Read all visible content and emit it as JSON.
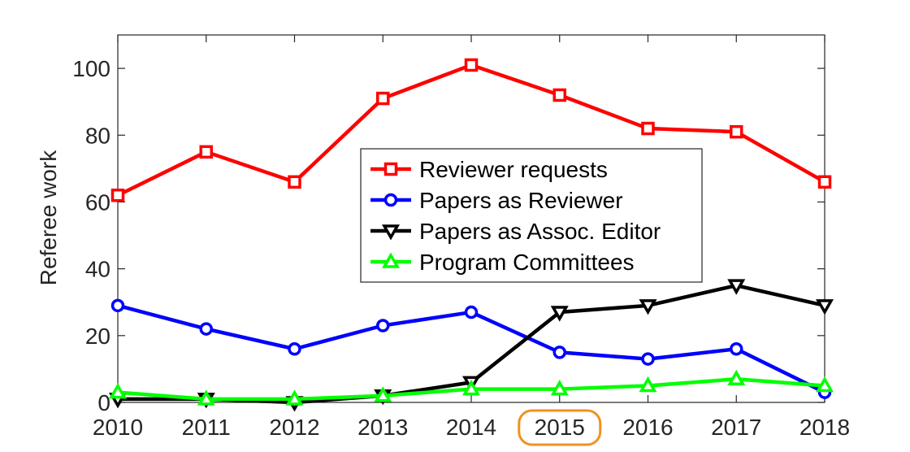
{
  "chart_data": {
    "type": "line",
    "title": "",
    "xlabel": "",
    "ylabel": "Referee work",
    "x": [
      2010,
      2011,
      2012,
      2013,
      2014,
      2015,
      2016,
      2017,
      2018
    ],
    "x_tick_labels": [
      "2010",
      "2011",
      "2012",
      "2013",
      "2014",
      "2015",
      "2016",
      "2017",
      "2018"
    ],
    "xlim": [
      2010,
      2018
    ],
    "ylim": [
      0,
      110
    ],
    "y_ticks": [
      0,
      20,
      40,
      60,
      80,
      100
    ],
    "y_tick_labels": [
      "0",
      "20",
      "40",
      "60",
      "80",
      "100"
    ],
    "grid": false,
    "legend_position": "center",
    "highlighted_x_label": "2015",
    "highlight_color": "#f0921e",
    "series": [
      {
        "name": "Reviewer requests",
        "color": "#ff0000",
        "marker": "square",
        "values": [
          62,
          75,
          66,
          91,
          101,
          92,
          82,
          81,
          66
        ]
      },
      {
        "name": "Papers as Reviewer",
        "color": "#0000ff",
        "marker": "circle",
        "values": [
          29,
          22,
          16,
          23,
          27,
          15,
          13,
          16,
          3
        ]
      },
      {
        "name": "Papers as Assoc. Editor",
        "color": "#000000",
        "marker": "triangle-down",
        "values": [
          1,
          1,
          0,
          2,
          6,
          27,
          29,
          35,
          29
        ]
      },
      {
        "name": "Program Committees",
        "color": "#00ff00",
        "marker": "triangle-up",
        "values": [
          3,
          1,
          1,
          2,
          4,
          4,
          5,
          7,
          5
        ]
      }
    ]
  }
}
